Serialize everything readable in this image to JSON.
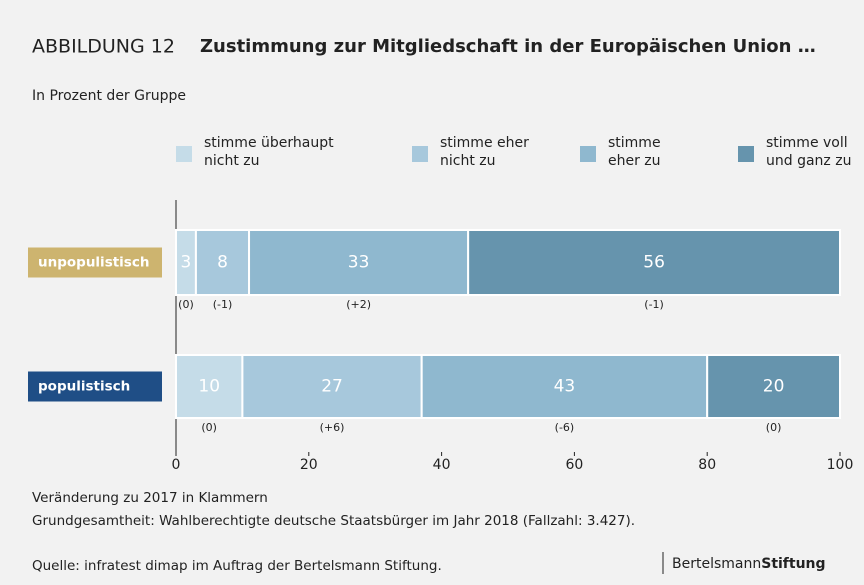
{
  "chart_data": {
    "type": "stacked_barh",
    "title_prefix": "ABBILDUNG 12",
    "title": "Zustimmung zur Mitgliedschaft in der Europäischen Union …",
    "subtitle": "In Prozent der Gruppe",
    "categories": [
      "unpopulistisch",
      "populistisch"
    ],
    "category_colors": [
      "#cdb46f",
      "#1f4e86"
    ],
    "series": [
      {
        "name": "stimme überhaupt\nnicht zu",
        "color": "#c5dce8",
        "values": [
          3,
          10
        ],
        "changes": [
          "(0)",
          "(0)"
        ]
      },
      {
        "name": "stimme eher\nnicht zu",
        "color": "#a7c8dc",
        "values": [
          8,
          27
        ],
        "changes": [
          "(-1)",
          "(+6)"
        ]
      },
      {
        "name": "stimme\neher zu",
        "color": "#8fb8cf",
        "values": [
          33,
          43
        ],
        "changes": [
          "(+2)",
          "(-6)"
        ]
      },
      {
        "name": "stimme voll\nund ganz zu",
        "color": "#6694ad",
        "values": [
          56,
          20
        ],
        "changes": [
          "(-1)",
          "(0)"
        ]
      }
    ],
    "xlim": [
      0,
      100
    ],
    "xticks": [
      0,
      20,
      40,
      60,
      80,
      100
    ],
    "notes": [
      "Veränderung zu 2017 in Klammern",
      "Grundgesamtheit: Wahlberechtigte deutsche Staatsbürger im Jahr 2018 (Fallzahl: 3.427)."
    ],
    "source": "Quelle: infratest dimap im Auftrag der Bertelsmann Stiftung.",
    "logo": [
      "Bertelsmann",
      "Stiftung"
    ]
  }
}
